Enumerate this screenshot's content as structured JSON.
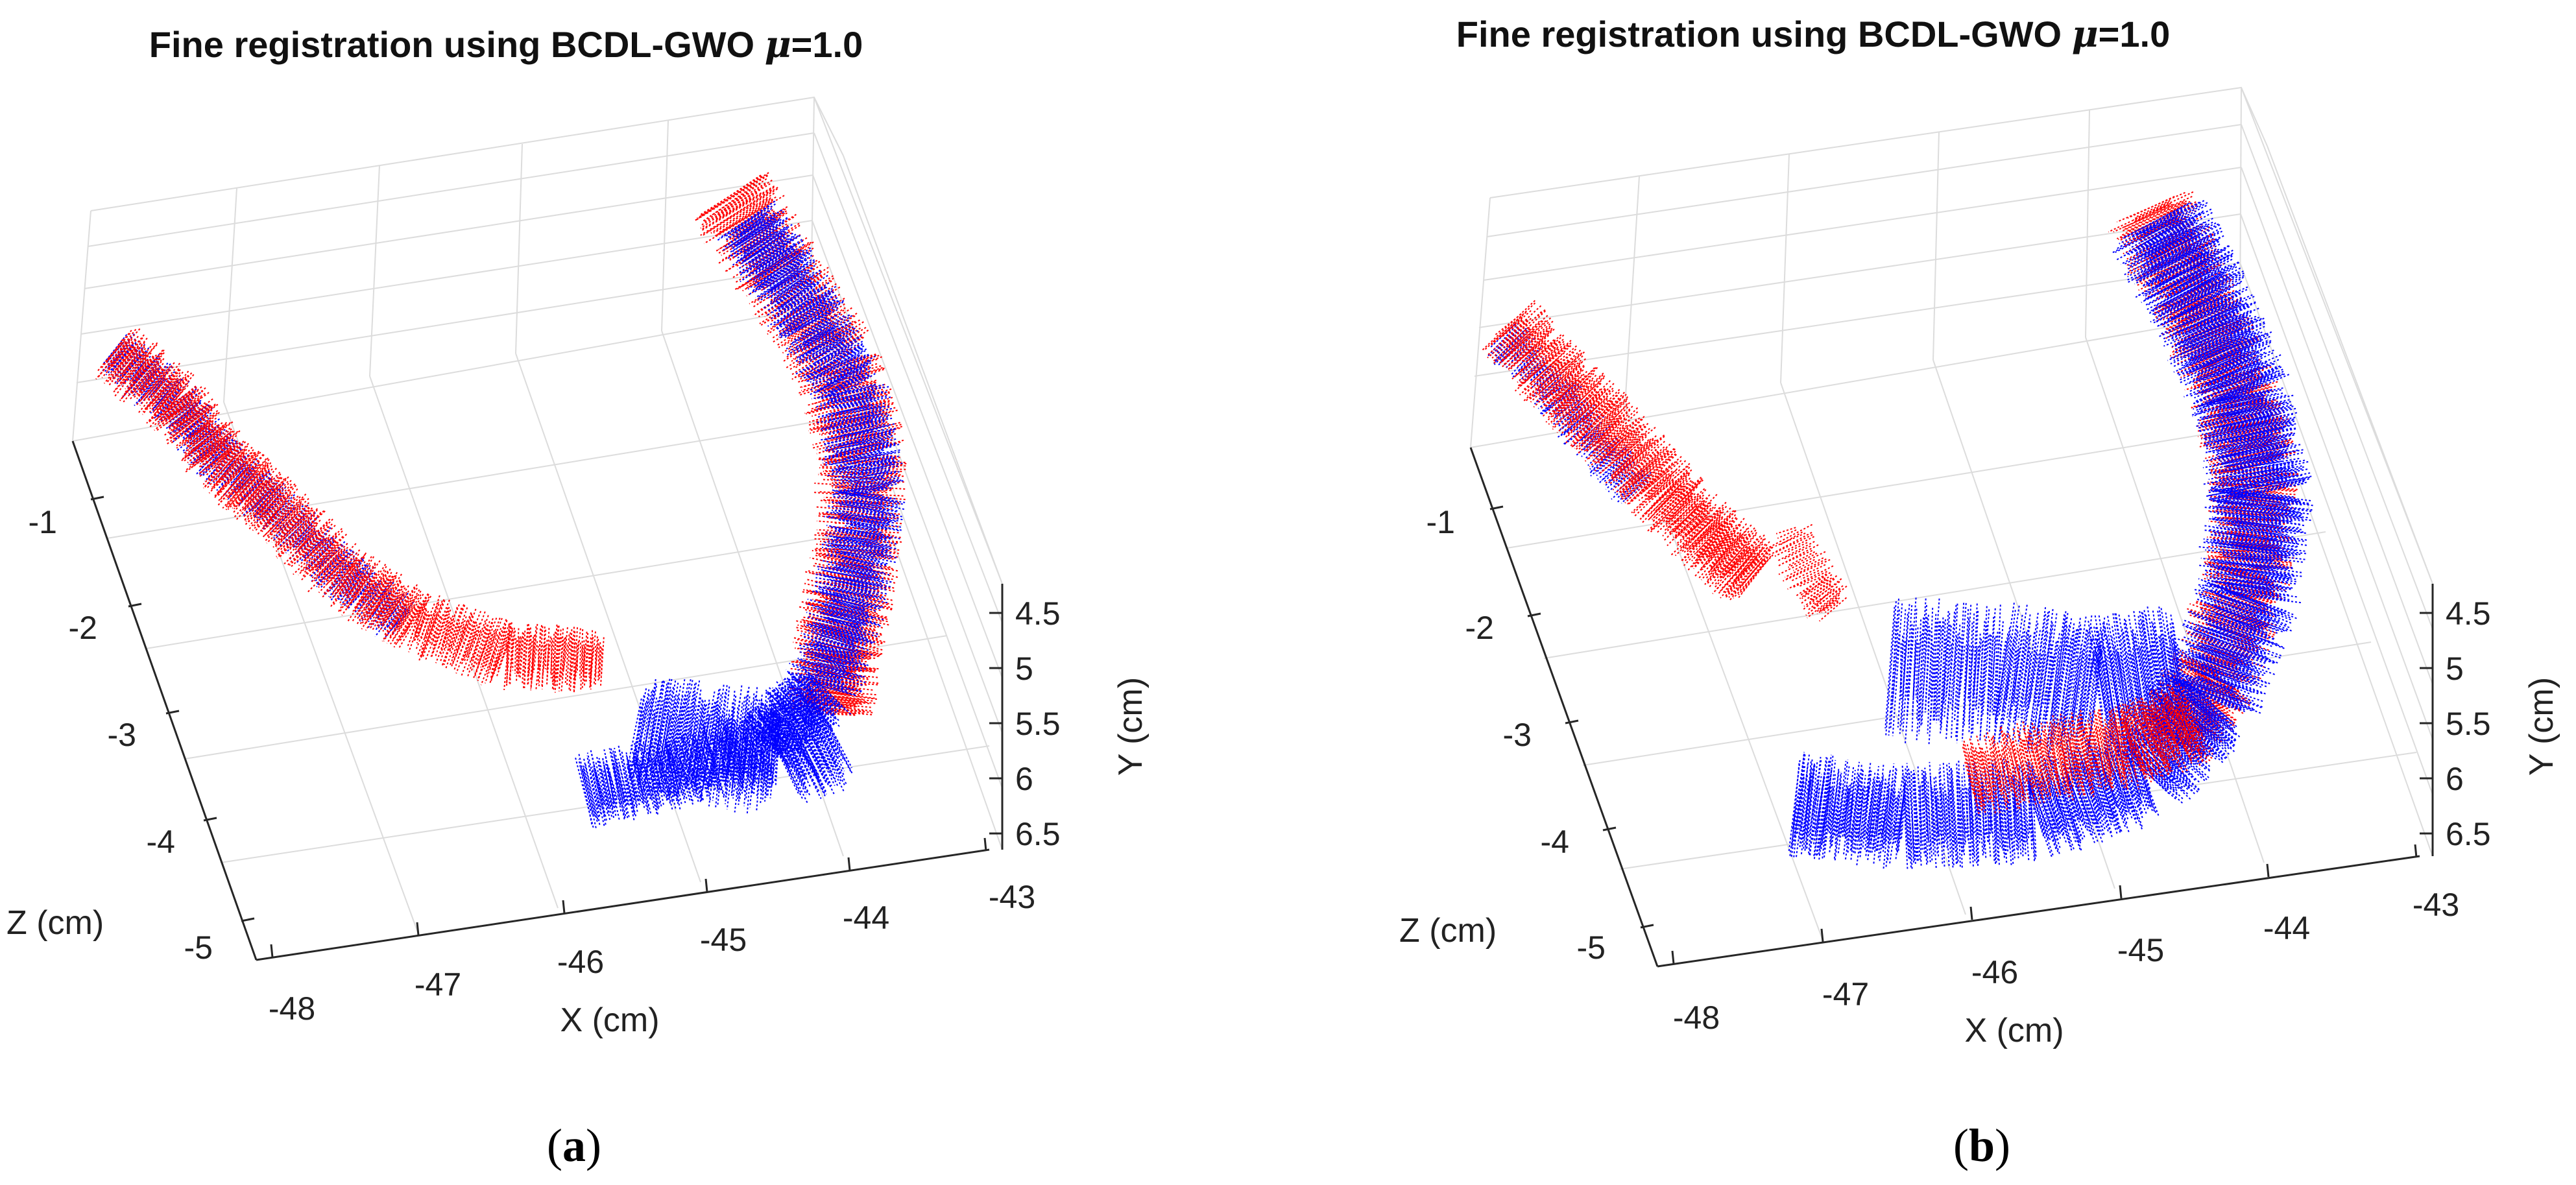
{
  "chart_data": [
    {
      "type": "scatter",
      "panel": "a",
      "title": "Fine registration using BCDL-GWO",
      "title_param": "μ",
      "title_value": "=1.0",
      "xlabel": "X (cm)",
      "ylabel": "Y (cm)",
      "zlabel": "Z (cm)",
      "x_ticks": [
        "-48",
        "-47",
        "-46",
        "-45",
        "-44",
        "-43"
      ],
      "y_ticks": [
        "4.5",
        "5",
        "5.5",
        "6",
        "6.5"
      ],
      "z_ticks": [
        "-1",
        "-2",
        "-3",
        "-4",
        "-5"
      ],
      "xlim": [
        -48.5,
        -42.8
      ],
      "ylim": [
        4.3,
        6.6
      ],
      "zlim": [
        -5.4,
        -0.6
      ],
      "grid": true,
      "series_colors": [
        "#ff0000",
        "#0000ff"
      ],
      "caption_letter": "a"
    },
    {
      "type": "scatter",
      "panel": "b",
      "title": "Fine registration using BCDL-GWO",
      "title_param": "μ",
      "title_value": "=1.0",
      "xlabel": "X (cm)",
      "ylabel": "Y (cm)",
      "zlabel": "Z (cm)",
      "x_ticks": [
        "-48",
        "-47",
        "-46",
        "-45",
        "-44",
        "-43"
      ],
      "y_ticks": [
        "4.5",
        "5",
        "5.5",
        "6",
        "6.5"
      ],
      "z_ticks": [
        "-1",
        "-2",
        "-3",
        "-4",
        "-5"
      ],
      "xlim": [
        -48.5,
        -42.8
      ],
      "ylim": [
        4.3,
        6.6
      ],
      "zlim": [
        -5.4,
        -0.6
      ],
      "grid": true,
      "series_colors": [
        "#ff0000",
        "#0000ff"
      ],
      "caption_letter": "b"
    }
  ]
}
